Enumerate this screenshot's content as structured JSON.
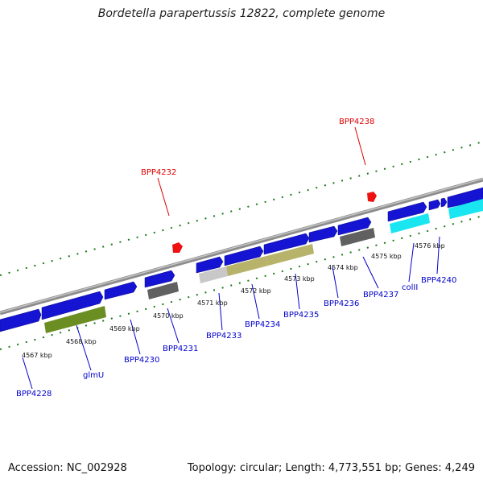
{
  "title": "Bordetella parapertussis 12822, complete genome",
  "footer": {
    "accession": "Accession: NC_002928",
    "summary": "Topology: circular; Length: 4,773,551 bp; Genes: 4,249"
  },
  "colors": {
    "backbone": "#8c8c8c",
    "forward_gene": "#1414d2",
    "cds_olive": "#6b8e23",
    "cds_khaki": "#b8b36a",
    "cds_gray": "#606060",
    "cds_lightgray": "#c8c8c8",
    "cds_cyan": "#19e6f0",
    "tick_green": "#1a7a1a",
    "label_blue": "#0000cc",
    "label_red": "#dd0000",
    "marker_red": "#ee1111"
  },
  "scale_ticks": [
    {
      "label": "4567 kbp"
    },
    {
      "label": "4568 kbp"
    },
    {
      "label": "4569 kbp"
    },
    {
      "label": "4570 kbp"
    },
    {
      "label": "4571 kbp"
    },
    {
      "label": "4572 kbp"
    },
    {
      "label": "4573 kbp"
    },
    {
      "label": "4574 kbp"
    },
    {
      "label": "4575 kbp"
    },
    {
      "label": "4576 kbp"
    }
  ],
  "gene_labels": [
    {
      "label": "BPP4228",
      "color": "blue"
    },
    {
      "label": "glmU",
      "color": "blue"
    },
    {
      "label": "BPP4230",
      "color": "blue"
    },
    {
      "label": "BPP4231",
      "color": "blue"
    },
    {
      "label": "BPP4233",
      "color": "blue"
    },
    {
      "label": "BPP4234",
      "color": "blue"
    },
    {
      "label": "BPP4235",
      "color": "blue"
    },
    {
      "label": "BPP4236",
      "color": "blue"
    },
    {
      "label": "BPP4237",
      "color": "blue"
    },
    {
      "label": "colII",
      "color": "blue"
    },
    {
      "label": "BPP4240",
      "color": "blue"
    },
    {
      "label": "BPP4232",
      "color": "red"
    },
    {
      "label": "BPP4238",
      "color": "red"
    }
  ]
}
